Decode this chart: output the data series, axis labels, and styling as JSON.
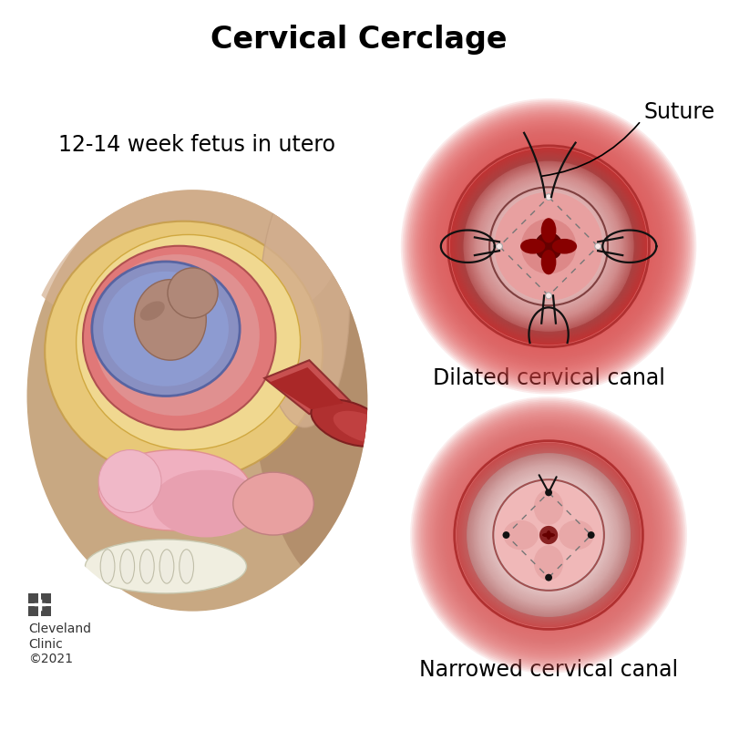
{
  "title": "Cervical Cerclage",
  "title_fontsize": 24,
  "title_fontweight": "bold",
  "label_fetus": "12-14 week fetus in utero",
  "label_dilated": "Dilated cervical canal",
  "label_narrowed": "Narrowed cervical canal",
  "label_suture": "Suture",
  "label_fontsize": 17,
  "label_fontweight": "normal",
  "bg_color": "#ffffff",
  "cleveland_text": "Cleveland\nClinic\n©2021",
  "dashed_color": "#777777",
  "suture_color": "#111111",
  "skin_color": "#c8a882",
  "skin_dark": "#a07858",
  "uterus_outer": "#e8c878",
  "uterus_mid": "#e0b060",
  "uterus_inner_red": "#d86060",
  "amnio_blue": "#7080c0",
  "fetus_brown": "#a07868",
  "cervix_red": "#c03030",
  "vaginal_red": "#b02828",
  "pelvis_pink": "#e8a0b0",
  "bone_white": "#f0eee0"
}
